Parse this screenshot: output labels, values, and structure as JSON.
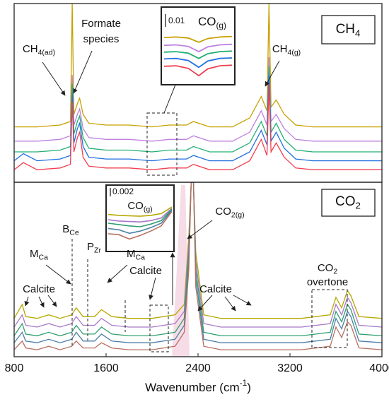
{
  "chart_data": [
    {
      "type": "line",
      "panel_label": {
        "text": "CH",
        "sub": "4"
      },
      "xlim": [
        800,
        4000
      ],
      "ylim": [
        0,
        100
      ],
      "x": [
        800,
        880,
        1000,
        1200,
        1290,
        1305,
        1320,
        1350,
        1370,
        1400,
        1450,
        1600,
        1800,
        2000,
        2150,
        2300,
        2360,
        2500,
        2700,
        2850,
        2950,
        3000,
        3017,
        3035,
        3080,
        3150,
        3250,
        3400,
        4000
      ],
      "series": [
        {
          "color": "#c8a000",
          "values": [
            31,
            31,
            31,
            32,
            34,
            100,
            38,
            44,
            47,
            38,
            33,
            32,
            32,
            31,
            32,
            32,
            34,
            31,
            31,
            36,
            48,
            40,
            100,
            42,
            46,
            38,
            32,
            31,
            31
          ]
        },
        {
          "color": "#c080e0",
          "values": [
            23,
            23,
            23,
            24,
            26,
            60,
            32,
            38,
            41,
            30,
            25,
            24,
            24,
            23,
            24,
            24,
            26,
            23,
            23,
            28,
            40,
            32,
            70,
            34,
            38,
            30,
            24,
            23,
            23
          ]
        },
        {
          "color": "#20b070",
          "values": [
            17,
            17,
            17,
            18,
            20,
            55,
            27,
            34,
            37,
            25,
            19,
            18,
            18,
            17,
            18,
            18,
            20,
            17,
            17,
            22,
            34,
            26,
            65,
            28,
            33,
            24,
            18,
            17,
            17
          ]
        },
        {
          "color": "#2070e0",
          "values": [
            12,
            16,
            12,
            13,
            15,
            50,
            22,
            30,
            33,
            20,
            14,
            13,
            13,
            12,
            13,
            13,
            15,
            12,
            12,
            17,
            29,
            21,
            60,
            23,
            28,
            19,
            13,
            12,
            12
          ]
        },
        {
          "color": "#f04050",
          "values": [
            7,
            11,
            7,
            8,
            10,
            45,
            17,
            25,
            28,
            14,
            9,
            8,
            8,
            7,
            8,
            8,
            10,
            7,
            7,
            12,
            24,
            15,
            55,
            17,
            22,
            14,
            8,
            7,
            7
          ]
        }
      ],
      "annotations": [
        {
          "text": "CH",
          "sub": "4(ad)"
        },
        {
          "text": "Formate"
        },
        {
          "text": "species"
        },
        {
          "text": "CH",
          "sub": "4(g)"
        }
      ]
    },
    {
      "type": "line",
      "panel_label": {
        "text": "CO",
        "sub": "2"
      },
      "xlim": [
        800,
        4000
      ],
      "ylim": [
        0,
        100
      ],
      "xticks": [
        800,
        1600,
        2400,
        3200,
        4000
      ],
      "xlabel": {
        "text": "Wavenumber (cm",
        "sup": "-1",
        "tail": ")"
      },
      "x": [
        800,
        870,
        900,
        1000,
        1100,
        1200,
        1300,
        1340,
        1400,
        1500,
        1560,
        1650,
        1800,
        2000,
        2200,
        2280,
        2320,
        2340,
        2360,
        2380,
        2450,
        2600,
        2800,
        3000,
        3300,
        3550,
        3600,
        3650,
        3700,
        3730,
        3800,
        4000
      ],
      "series": [
        {
          "color": "#b5a800",
          "values": [
            22,
            30,
            23,
            22,
            24,
            22,
            24,
            28,
            23,
            23,
            27,
            23,
            22,
            22,
            24,
            30,
            70,
            100,
            100,
            60,
            24,
            22,
            22,
            22,
            22,
            24,
            34,
            28,
            38,
            35,
            23,
            22
          ]
        },
        {
          "color": "#a878c8",
          "values": [
            17,
            24,
            18,
            17,
            19,
            17,
            19,
            23,
            18,
            18,
            22,
            18,
            17,
            17,
            19,
            26,
            65,
            100,
            100,
            55,
            19,
            17,
            17,
            17,
            17,
            19,
            30,
            24,
            34,
            31,
            18,
            17
          ]
        },
        {
          "color": "#30a070",
          "values": [
            12,
            19,
            13,
            12,
            14,
            12,
            14,
            18,
            13,
            13,
            17,
            13,
            12,
            12,
            14,
            22,
            60,
            100,
            100,
            50,
            14,
            12,
            12,
            12,
            12,
            14,
            26,
            20,
            30,
            27,
            13,
            12
          ]
        },
        {
          "color": "#4c7fa8",
          "values": [
            8,
            14,
            9,
            8,
            10,
            8,
            10,
            14,
            9,
            9,
            13,
            9,
            8,
            8,
            10,
            18,
            55,
            100,
            100,
            45,
            10,
            8,
            8,
            8,
            8,
            10,
            22,
            16,
            26,
            23,
            9,
            8
          ]
        },
        {
          "color": "#b87060",
          "values": [
            4,
            9,
            5,
            4,
            6,
            4,
            6,
            9,
            5,
            5,
            8,
            5,
            4,
            4,
            6,
            14,
            50,
            100,
            100,
            40,
            6,
            4,
            4,
            4,
            4,
            6,
            17,
            11,
            20,
            18,
            5,
            4
          ]
        }
      ],
      "annotations": [
        {
          "text": "CO",
          "sub": "2(g)"
        },
        {
          "text": "B",
          "sub": "Ce"
        },
        {
          "text": "M",
          "sub": "Ca"
        },
        {
          "text": "P",
          "sub": "Zr"
        },
        {
          "text": "M",
          "sub": "Ca"
        },
        {
          "text": "Calcite"
        },
        {
          "text": "Calcite"
        },
        {
          "text": "Calcite"
        },
        {
          "text": "CO",
          "sub": "2"
        },
        {
          "text": "overtone"
        }
      ]
    },
    {
      "type": "line",
      "scale_label": "0.01",
      "label": {
        "text": "CO",
        "sub": "(g)"
      },
      "xlim": [
        2000,
        2280
      ],
      "ylim": [
        0,
        100
      ],
      "x": [
        2000,
        2050,
        2100,
        2143,
        2180,
        2230,
        2280
      ],
      "series": [
        {
          "color": "#c8a000",
          "values": [
            85,
            86,
            84,
            76,
            83,
            86,
            87
          ]
        },
        {
          "color": "#c080e0",
          "values": [
            70,
            71,
            68,
            58,
            67,
            71,
            72
          ]
        },
        {
          "color": "#20b070",
          "values": [
            57,
            58,
            55,
            45,
            54,
            58,
            59
          ]
        },
        {
          "color": "#2070e0",
          "values": [
            44,
            45,
            41,
            28,
            40,
            45,
            46
          ]
        },
        {
          "color": "#f04050",
          "values": [
            30,
            31,
            26,
            12,
            25,
            31,
            32
          ]
        }
      ]
    },
    {
      "type": "line",
      "scale_label": "0.002",
      "label": {
        "text": "CO",
        "sub": "(g)"
      },
      "xlim": [
        1950,
        2250
      ],
      "ylim": [
        0,
        100
      ],
      "x": [
        1950,
        2000,
        2050,
        2100,
        2150,
        2200,
        2250
      ],
      "series": [
        {
          "color": "#b5a800",
          "values": [
            78,
            76,
            75,
            74,
            76,
            80,
            95
          ]
        },
        {
          "color": "#a878c8",
          "values": [
            66,
            63,
            62,
            61,
            64,
            70,
            92
          ]
        },
        {
          "color": "#30a070",
          "values": [
            58,
            55,
            52,
            50,
            56,
            64,
            90
          ]
        },
        {
          "color": "#4c7fa8",
          "values": [
            46,
            43,
            35,
            40,
            48,
            58,
            88
          ]
        },
        {
          "color": "#b87060",
          "values": [
            34,
            32,
            22,
            30,
            40,
            52,
            85
          ]
        }
      ]
    }
  ]
}
